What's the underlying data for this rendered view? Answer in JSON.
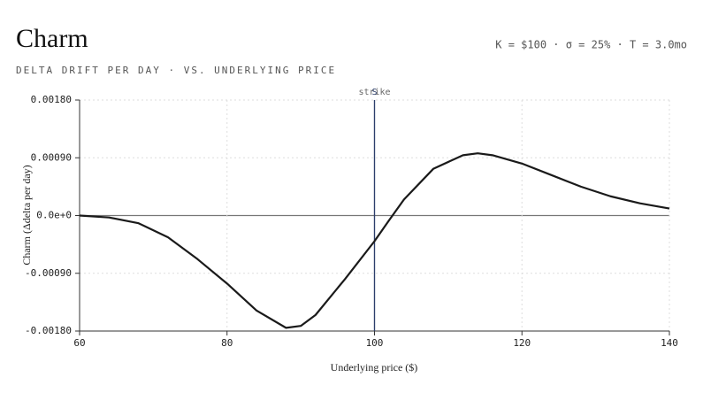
{
  "chart_data": {
    "type": "line",
    "title": "Charm",
    "subtitle": "DELTA DRIFT PER DAY · VS. UNDERLYING PRICE",
    "parameters": "K = $100 · σ = 25% · T = 3.0mo",
    "x_label": "Underlying price ($)",
    "y_label": "Charm (Δdelta per day)",
    "x": [
      60,
      64,
      68,
      72,
      76,
      80,
      84,
      88,
      90,
      92,
      96,
      100,
      102,
      104,
      108,
      112,
      114,
      116,
      120,
      124,
      128,
      132,
      136,
      140
    ],
    "series": [
      {
        "name": "Charm",
        "color": "#1a1a1a",
        "values": [
          0,
          -3e-05,
          -0.00012,
          -0.00034,
          -0.00068,
          -0.00106,
          -0.00148,
          -0.00175,
          -0.00172,
          -0.00155,
          -0.00099,
          -0.0004,
          -7e-05,
          0.00025,
          0.00073,
          0.00094,
          0.00097,
          0.00094,
          0.00081,
          0.00063,
          0.00045,
          0.0003,
          0.00019,
          0.00011
        ]
      }
    ],
    "xlim": [
      60,
      140
    ],
    "xticks": [
      60,
      80,
      100,
      120,
      140
    ],
    "ylim": [
      -0.0018,
      0.0018
    ],
    "yticks": [
      {
        "value": -0.0018,
        "label": "-0.00180"
      },
      {
        "value": -0.0009,
        "label": "-0.00090"
      },
      {
        "value": 0,
        "label": "0.0e+0"
      },
      {
        "value": 0.0009,
        "label": "0.00090"
      },
      {
        "value": 0.0018,
        "label": "0.00180"
      }
    ],
    "grid": true,
    "annotations": [
      {
        "x": 100,
        "label": "strike",
        "color": "#2c3e6b"
      },
      {
        "x": 100,
        "label": "S",
        "color": "#2c3e6b"
      }
    ]
  }
}
